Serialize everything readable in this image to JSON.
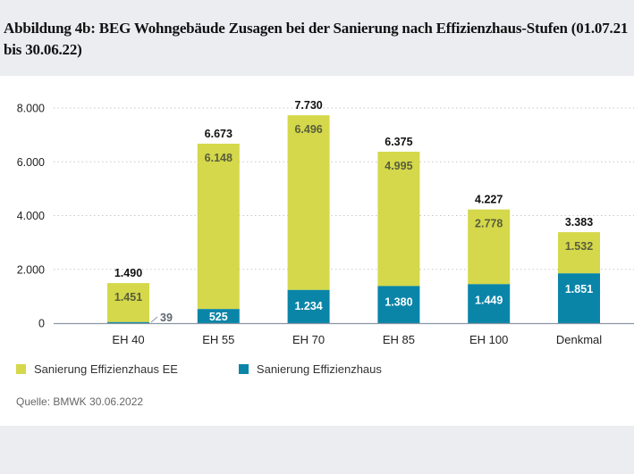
{
  "title": "Abbildung 4b: BEG Wohngebäude Zusagen bei der Sanierung nach Effizienzhaus-Stufen (01.07.21 bis 30.06.22)",
  "source": "Quelle: BMWK 30.06.2022",
  "colors": {
    "ee": "#d4d84a",
    "eh": "#0a85a8",
    "axis": "#8a97a4",
    "grid": "#c8c8c8"
  },
  "legend": [
    {
      "label": "Sanierung Effizienzhaus EE",
      "color": "#d4d84a"
    },
    {
      "label": "Sanierung Effizienzhaus",
      "color": "#0a85a8"
    }
  ],
  "chart_data": {
    "type": "bar",
    "stacked": true,
    "title": "Abbildung 4b: BEG Wohngebäude Zusagen bei der Sanierung nach Effizienzhaus-Stufen (01.07.21 bis 30.06.22)",
    "xlabel": "",
    "ylabel": "",
    "categories": [
      "EH 40",
      "EH 55",
      "EH 70",
      "EH 85",
      "EH 100",
      "Denkmal"
    ],
    "series": [
      {
        "name": "Sanierung Effizienzhaus",
        "values": [
          39,
          525,
          1234,
          1380,
          1449,
          1851
        ],
        "labels": [
          "39",
          "525",
          "1.234",
          "1.380",
          "1.449",
          "1.851"
        ]
      },
      {
        "name": "Sanierung Effizienzhaus EE",
        "values": [
          1451,
          6148,
          6496,
          4995,
          2778,
          1532
        ],
        "labels": [
          "1.451",
          "6.148",
          "6.496",
          "4.995",
          "2.778",
          "1.532"
        ]
      }
    ],
    "totals": [
      1490,
      6673,
      7730,
      6375,
      4227,
      3383
    ],
    "total_labels": [
      "1.490",
      "6.673",
      "7.730",
      "6.375",
      "4.227",
      "3.383"
    ],
    "ylim": [
      0,
      8000
    ],
    "yticks": [
      0,
      2000,
      4000,
      6000,
      8000
    ],
    "ytick_labels": [
      "0",
      "2.000",
      "4.000",
      "6.000",
      "8.000"
    ],
    "grid": true,
    "legend_position": "bottom-left"
  }
}
